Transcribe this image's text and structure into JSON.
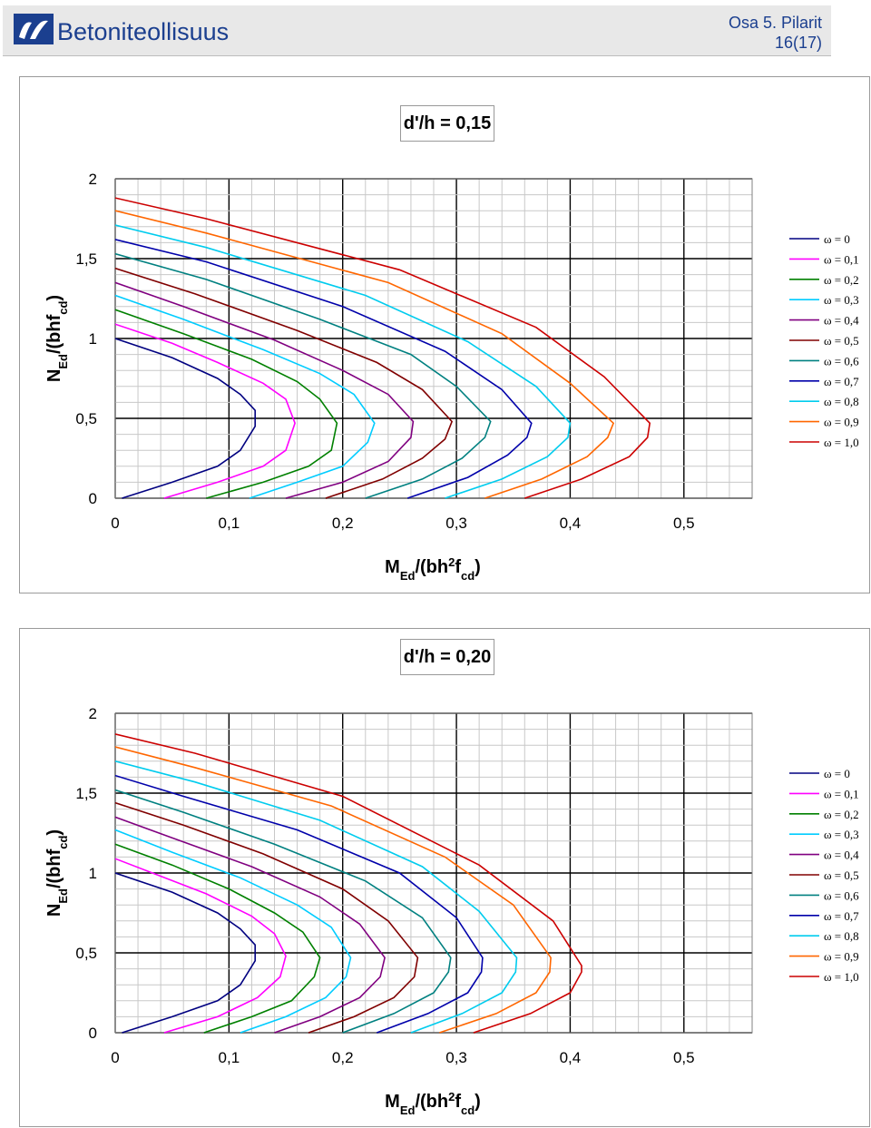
{
  "header": {
    "brand": "Betoniteollisuus",
    "section": "Osa 5. Pilarit",
    "page": "16(17)",
    "logo_color": "#1b3f8f"
  },
  "chart_data": [
    {
      "type": "line",
      "title": "d'/h = 0,15",
      "xlabel": "MEd/(bh2fcd)",
      "ylabel": "NEd/(bhfcd)",
      "xlim": [
        0,
        0.56
      ],
      "ylim": [
        0,
        2
      ],
      "xticks": [
        "0",
        "0,1",
        "0,2",
        "0,3",
        "0,4",
        "0,5"
      ],
      "yticks": [
        "0",
        "0,5",
        "1",
        "1,5",
        "2"
      ],
      "grid": true,
      "legend_position": "right",
      "series": [
        {
          "name": "ω = 0",
          "color": "#000080",
          "points": [
            [
              0.006,
              0
            ],
            [
              0.05,
              0.1
            ],
            [
              0.09,
              0.2
            ],
            [
              0.11,
              0.3
            ],
            [
              0.123,
              0.45
            ],
            [
              0.123,
              0.55
            ],
            [
              0.11,
              0.65
            ],
            [
              0.09,
              0.75
            ],
            [
              0.05,
              0.88
            ],
            [
              0,
              1
            ]
          ]
        },
        {
          "name": "ω = 0,1",
          "color": "#ff00ff",
          "points": [
            [
              0.043,
              0
            ],
            [
              0.09,
              0.1
            ],
            [
              0.13,
              0.2
            ],
            [
              0.15,
              0.3
            ],
            [
              0.158,
              0.47
            ],
            [
              0.15,
              0.62
            ],
            [
              0.13,
              0.72
            ],
            [
              0.09,
              0.85
            ],
            [
              0.05,
              0.97
            ],
            [
              0,
              1.09
            ]
          ]
        },
        {
          "name": "ω = 0,2",
          "color": "#008000",
          "points": [
            [
              0.08,
              0
            ],
            [
              0.13,
              0.1
            ],
            [
              0.17,
              0.2
            ],
            [
              0.19,
              0.3
            ],
            [
              0.195,
              0.47
            ],
            [
              0.18,
              0.62
            ],
            [
              0.16,
              0.73
            ],
            [
              0.12,
              0.87
            ],
            [
              0.06,
              1.03
            ],
            [
              0,
              1.18
            ]
          ]
        },
        {
          "name": "ω = 0,3",
          "color": "#00ccff",
          "points": [
            [
              0.118,
              0
            ],
            [
              0.16,
              0.1
            ],
            [
              0.2,
              0.2
            ],
            [
              0.222,
              0.35
            ],
            [
              0.228,
              0.47
            ],
            [
              0.21,
              0.65
            ],
            [
              0.18,
              0.78
            ],
            [
              0.13,
              0.93
            ],
            [
              0.06,
              1.12
            ],
            [
              0,
              1.27
            ]
          ]
        },
        {
          "name": "ω = 0,4",
          "color": "#800080",
          "points": [
            [
              0.15,
              0
            ],
            [
              0.2,
              0.1
            ],
            [
              0.24,
              0.23
            ],
            [
              0.26,
              0.38
            ],
            [
              0.262,
              0.48
            ],
            [
              0.24,
              0.65
            ],
            [
              0.2,
              0.8
            ],
            [
              0.14,
              0.99
            ],
            [
              0.06,
              1.2
            ],
            [
              0,
              1.35
            ]
          ]
        },
        {
          "name": "ω = 0,5",
          "color": "#800000",
          "points": [
            [
              0.185,
              0
            ],
            [
              0.235,
              0.12
            ],
            [
              0.27,
              0.25
            ],
            [
              0.29,
              0.37
            ],
            [
              0.296,
              0.48
            ],
            [
              0.27,
              0.68
            ],
            [
              0.23,
              0.85
            ],
            [
              0.16,
              1.05
            ],
            [
              0.07,
              1.28
            ],
            [
              0,
              1.44
            ]
          ]
        },
        {
          "name": "ω = 0,6",
          "color": "#008080",
          "points": [
            [
              0.22,
              0
            ],
            [
              0.27,
              0.12
            ],
            [
              0.305,
              0.25
            ],
            [
              0.325,
              0.38
            ],
            [
              0.33,
              0.48
            ],
            [
              0.3,
              0.7
            ],
            [
              0.26,
              0.9
            ],
            [
              0.18,
              1.12
            ],
            [
              0.08,
              1.37
            ],
            [
              0,
              1.53
            ]
          ]
        },
        {
          "name": "ω = 0,7",
          "color": "#0000aa",
          "points": [
            [
              0.257,
              0
            ],
            [
              0.31,
              0.13
            ],
            [
              0.345,
              0.27
            ],
            [
              0.362,
              0.38
            ],
            [
              0.366,
              0.47
            ],
            [
              0.34,
              0.68
            ],
            [
              0.29,
              0.92
            ],
            [
              0.2,
              1.2
            ],
            [
              0.08,
              1.48
            ],
            [
              0,
              1.62
            ]
          ]
        },
        {
          "name": "ω = 0,8",
          "color": "#00ccee",
          "points": [
            [
              0.29,
              0
            ],
            [
              0.34,
              0.12
            ],
            [
              0.38,
              0.26
            ],
            [
              0.398,
              0.38
            ],
            [
              0.4,
              0.47
            ],
            [
              0.37,
              0.7
            ],
            [
              0.31,
              0.98
            ],
            [
              0.22,
              1.27
            ],
            [
              0.08,
              1.57
            ],
            [
              0,
              1.71
            ]
          ]
        },
        {
          "name": "ω = 0,9",
          "color": "#ff6600",
          "points": [
            [
              0.325,
              0
            ],
            [
              0.375,
              0.12
            ],
            [
              0.415,
              0.26
            ],
            [
              0.433,
              0.38
            ],
            [
              0.438,
              0.47
            ],
            [
              0.4,
              0.72
            ],
            [
              0.34,
              1.03
            ],
            [
              0.24,
              1.35
            ],
            [
              0.08,
              1.66
            ],
            [
              0,
              1.8
            ]
          ]
        },
        {
          "name": "ω = 1,0",
          "color": "#cc0000",
          "points": [
            [
              0.36,
              0
            ],
            [
              0.41,
              0.12
            ],
            [
              0.452,
              0.26
            ],
            [
              0.468,
              0.38
            ],
            [
              0.47,
              0.47
            ],
            [
              0.43,
              0.76
            ],
            [
              0.37,
              1.07
            ],
            [
              0.25,
              1.43
            ],
            [
              0.08,
              1.75
            ],
            [
              0,
              1.88
            ]
          ]
        }
      ]
    },
    {
      "type": "line",
      "title": "d'/h = 0,20",
      "xlabel": "MEd/(bh2fcd)",
      "ylabel": "NEd/(bhfcd)",
      "xlim": [
        0,
        0.56
      ],
      "ylim": [
        0,
        2
      ],
      "xticks": [
        "0",
        "0,1",
        "0,2",
        "0,3",
        "0,4",
        "0,5"
      ],
      "yticks": [
        "0",
        "0,5",
        "1",
        "1,5",
        "2"
      ],
      "grid": true,
      "legend_position": "right",
      "series": [
        {
          "name": "ω = 0",
          "color": "#000080",
          "points": [
            [
              0.006,
              0
            ],
            [
              0.05,
              0.1
            ],
            [
              0.09,
              0.2
            ],
            [
              0.11,
              0.3
            ],
            [
              0.123,
              0.45
            ],
            [
              0.123,
              0.55
            ],
            [
              0.11,
              0.65
            ],
            [
              0.09,
              0.75
            ],
            [
              0.05,
              0.88
            ],
            [
              0,
              1
            ]
          ]
        },
        {
          "name": "ω = 0,1",
          "color": "#ff00ff",
          "points": [
            [
              0.043,
              0
            ],
            [
              0.09,
              0.1
            ],
            [
              0.125,
              0.22
            ],
            [
              0.145,
              0.35
            ],
            [
              0.15,
              0.48
            ],
            [
              0.14,
              0.62
            ],
            [
              0.12,
              0.73
            ],
            [
              0.08,
              0.87
            ],
            [
              0.04,
              0.98
            ],
            [
              0,
              1.09
            ]
          ]
        },
        {
          "name": "ω = 0,2",
          "color": "#008000",
          "points": [
            [
              0.078,
              0
            ],
            [
              0.12,
              0.1
            ],
            [
              0.155,
              0.2
            ],
            [
              0.175,
              0.35
            ],
            [
              0.18,
              0.47
            ],
            [
              0.165,
              0.63
            ],
            [
              0.14,
              0.75
            ],
            [
              0.1,
              0.9
            ],
            [
              0.05,
              1.05
            ],
            [
              0,
              1.18
            ]
          ]
        },
        {
          "name": "ω = 0,3",
          "color": "#00ccff",
          "points": [
            [
              0.11,
              0
            ],
            [
              0.15,
              0.1
            ],
            [
              0.185,
              0.22
            ],
            [
              0.203,
              0.35
            ],
            [
              0.207,
              0.47
            ],
            [
              0.19,
              0.66
            ],
            [
              0.16,
              0.8
            ],
            [
              0.11,
              0.97
            ],
            [
              0.05,
              1.13
            ],
            [
              0,
              1.27
            ]
          ]
        },
        {
          "name": "ω = 0,4",
          "color": "#800080",
          "points": [
            [
              0.14,
              0
            ],
            [
              0.18,
              0.1
            ],
            [
              0.215,
              0.22
            ],
            [
              0.233,
              0.35
            ],
            [
              0.237,
              0.47
            ],
            [
              0.215,
              0.68
            ],
            [
              0.18,
              0.85
            ],
            [
              0.12,
              1.04
            ],
            [
              0.05,
              1.22
            ],
            [
              0,
              1.35
            ]
          ]
        },
        {
          "name": "ω = 0,5",
          "color": "#800000",
          "points": [
            [
              0.17,
              0
            ],
            [
              0.21,
              0.1
            ],
            [
              0.245,
              0.22
            ],
            [
              0.263,
              0.35
            ],
            [
              0.266,
              0.47
            ],
            [
              0.24,
              0.7
            ],
            [
              0.2,
              0.9
            ],
            [
              0.13,
              1.12
            ],
            [
              0.06,
              1.3
            ],
            [
              0,
              1.44
            ]
          ]
        },
        {
          "name": "ω = 0,6",
          "color": "#008080",
          "points": [
            [
              0.2,
              0
            ],
            [
              0.245,
              0.12
            ],
            [
              0.28,
              0.25
            ],
            [
              0.293,
              0.38
            ],
            [
              0.295,
              0.47
            ],
            [
              0.27,
              0.72
            ],
            [
              0.22,
              0.95
            ],
            [
              0.14,
              1.18
            ],
            [
              0.06,
              1.38
            ],
            [
              0,
              1.52
            ]
          ]
        },
        {
          "name": "ω = 0,7",
          "color": "#0000aa",
          "points": [
            [
              0.23,
              0
            ],
            [
              0.275,
              0.12
            ],
            [
              0.31,
              0.25
            ],
            [
              0.322,
              0.38
            ],
            [
              0.323,
              0.47
            ],
            [
              0.3,
              0.72
            ],
            [
              0.25,
              1.0
            ],
            [
              0.16,
              1.27
            ],
            [
              0.06,
              1.48
            ],
            [
              0,
              1.61
            ]
          ]
        },
        {
          "name": "ω = 0,8",
          "color": "#00ccee",
          "points": [
            [
              0.26,
              0
            ],
            [
              0.305,
              0.12
            ],
            [
              0.34,
              0.25
            ],
            [
              0.352,
              0.38
            ],
            [
              0.353,
              0.47
            ],
            [
              0.32,
              0.76
            ],
            [
              0.27,
              1.04
            ],
            [
              0.18,
              1.33
            ],
            [
              0.07,
              1.57
            ],
            [
              0,
              1.7
            ]
          ]
        },
        {
          "name": "ω = 0,9",
          "color": "#ff6600",
          "points": [
            [
              0.285,
              0
            ],
            [
              0.335,
              0.12
            ],
            [
              0.37,
              0.25
            ],
            [
              0.382,
              0.38
            ],
            [
              0.383,
              0.47
            ],
            [
              0.35,
              0.8
            ],
            [
              0.29,
              1.1
            ],
            [
              0.19,
              1.42
            ],
            [
              0.07,
              1.66
            ],
            [
              0,
              1.79
            ]
          ]
        },
        {
          "name": "ω = 1,0",
          "color": "#cc0000",
          "points": [
            [
              0.315,
              0
            ],
            [
              0.365,
              0.12
            ],
            [
              0.4,
              0.25
            ],
            [
              0.41,
              0.38
            ],
            [
              0.41,
              0.42
            ],
            [
              0.385,
              0.7
            ],
            [
              0.32,
              1.05
            ],
            [
              0.2,
              1.48
            ],
            [
              0.07,
              1.75
            ],
            [
              0,
              1.87
            ]
          ]
        }
      ]
    }
  ]
}
